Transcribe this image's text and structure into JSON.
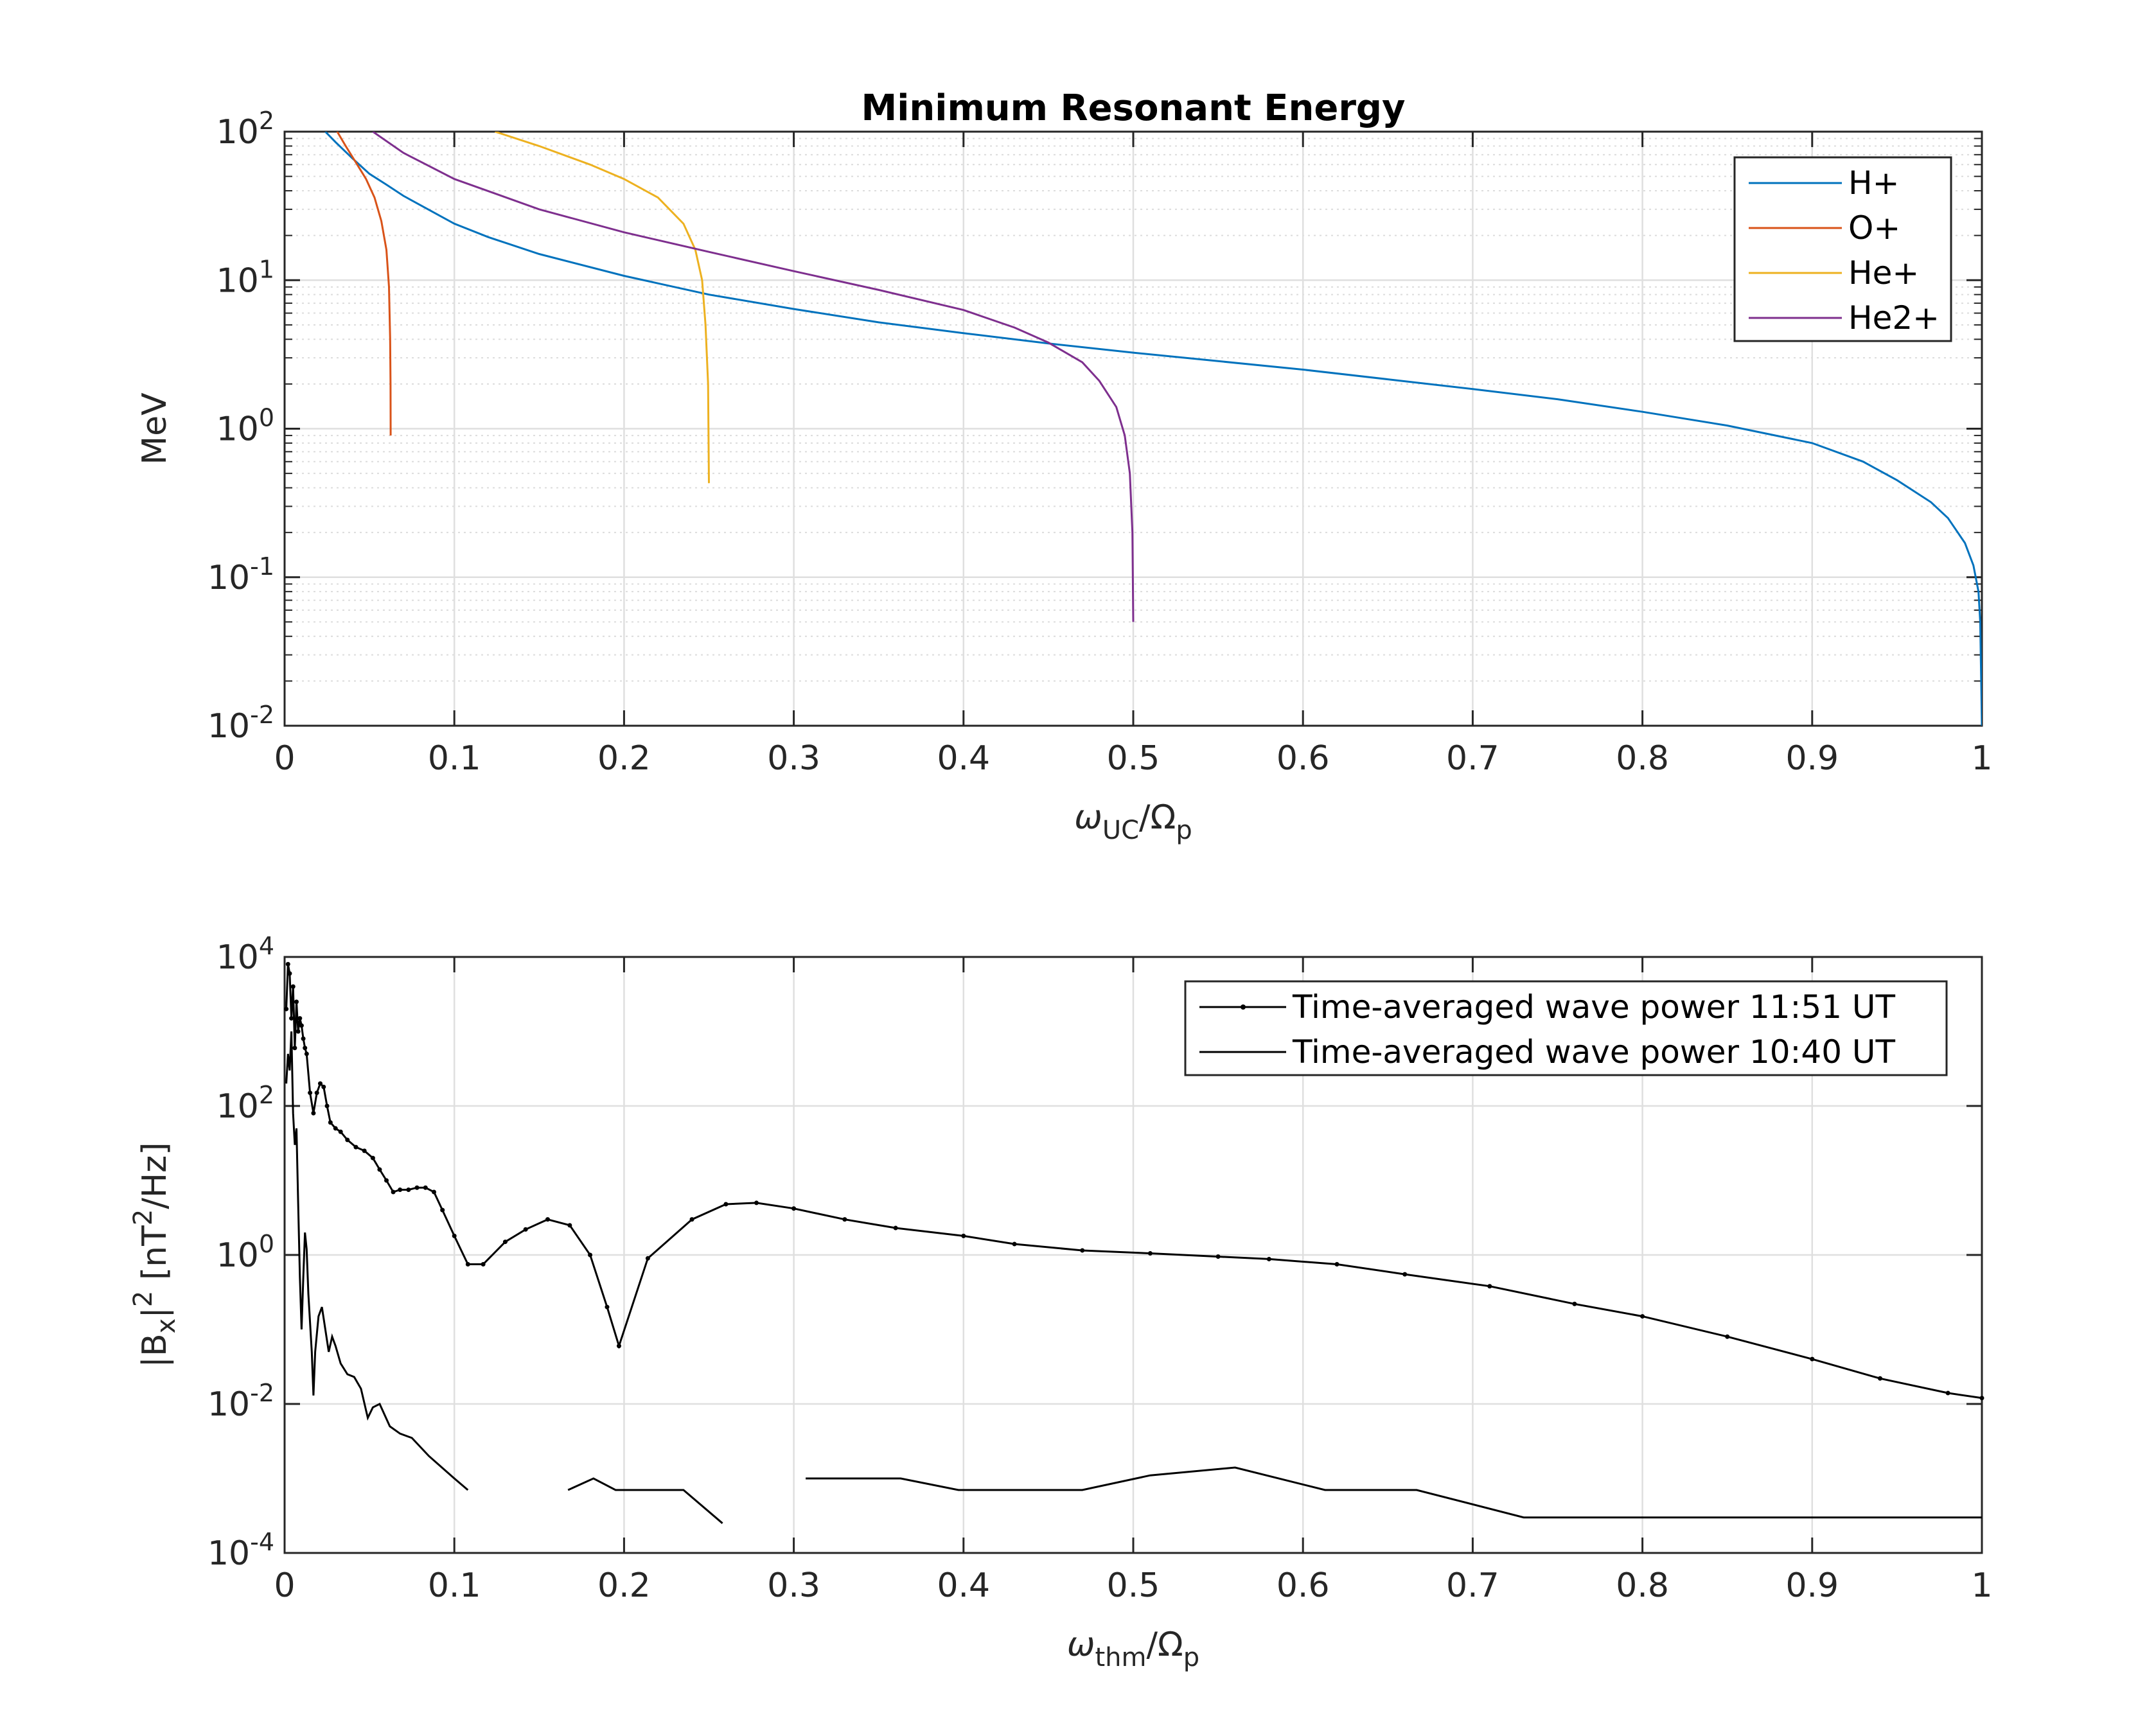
{
  "chart_data": [
    {
      "type": "line",
      "title": "Minimum Resonant Energy",
      "xlabel": {
        "base": "ω",
        "sub": "UC",
        "mid": "/Ω",
        "sub2": "p"
      },
      "ylabel": "MeV",
      "xlim": [
        0,
        1
      ],
      "ylim": [
        0.01,
        100
      ],
      "yscale": "log",
      "grid": true,
      "minor_grid_y": true,
      "legend_position": "top-right",
      "xticks": [
        "0",
        "0.1",
        "0.2",
        "0.3",
        "0.4",
        "0.5",
        "0.6",
        "0.7",
        "0.8",
        "0.9",
        "1"
      ],
      "yticks": [
        {
          "base": "10",
          "exp": "-2",
          "value": 0.01
        },
        {
          "base": "10",
          "exp": "-1",
          "value": 0.1
        },
        {
          "base": "10",
          "exp": "0",
          "value": 1
        },
        {
          "base": "10",
          "exp": "1",
          "value": 10
        },
        {
          "base": "10",
          "exp": "2",
          "value": 100
        }
      ],
      "series": [
        {
          "name": "H+",
          "color": "#0072BD",
          "points": [
            [
              0.024,
              100
            ],
            [
              0.03,
              85
            ],
            [
              0.04,
              66
            ],
            [
              0.05,
              52
            ],
            [
              0.06,
              44
            ],
            [
              0.07,
              37
            ],
            [
              0.08,
              32
            ],
            [
              0.1,
              24
            ],
            [
              0.12,
              19.5
            ],
            [
              0.15,
              15
            ],
            [
              0.2,
              10.7
            ],
            [
              0.25,
              8
            ],
            [
              0.3,
              6.4
            ],
            [
              0.35,
              5.2
            ],
            [
              0.4,
              4.4
            ],
            [
              0.45,
              3.75
            ],
            [
              0.5,
              3.25
            ],
            [
              0.55,
              2.85
            ],
            [
              0.6,
              2.5
            ],
            [
              0.65,
              2.15
            ],
            [
              0.7,
              1.85
            ],
            [
              0.75,
              1.58
            ],
            [
              0.8,
              1.3
            ],
            [
              0.85,
              1.05
            ],
            [
              0.9,
              0.8
            ],
            [
              0.93,
              0.6
            ],
            [
              0.95,
              0.45
            ],
            [
              0.97,
              0.32
            ],
            [
              0.98,
              0.25
            ],
            [
              0.99,
              0.17
            ],
            [
              0.995,
              0.12
            ],
            [
              0.998,
              0.08
            ],
            [
              0.999,
              0.05
            ],
            [
              1.0,
              0.01
            ]
          ]
        },
        {
          "name": "O+",
          "color": "#D95319",
          "points": [
            [
              0.031,
              100
            ],
            [
              0.036,
              80
            ],
            [
              0.042,
              62
            ],
            [
              0.048,
              48
            ],
            [
              0.053,
              36
            ],
            [
              0.057,
              25
            ],
            [
              0.06,
              16
            ],
            [
              0.0615,
              9
            ],
            [
              0.0622,
              4
            ],
            [
              0.0624,
              2
            ],
            [
              0.0625,
              0.9
            ]
          ]
        },
        {
          "name": "He+",
          "color": "#EDB120",
          "points": [
            [
              0.124,
              100
            ],
            [
              0.15,
              80
            ],
            [
              0.18,
              60
            ],
            [
              0.2,
              48
            ],
            [
              0.22,
              36
            ],
            [
              0.235,
              24
            ],
            [
              0.242,
              16
            ],
            [
              0.246,
              10
            ],
            [
              0.248,
              5
            ],
            [
              0.2495,
              2
            ],
            [
              0.25,
              0.43
            ]
          ]
        },
        {
          "name": "He2+",
          "color": "#7E2F8E",
          "points": [
            [
              0.052,
              100
            ],
            [
              0.07,
              72
            ],
            [
              0.1,
              48
            ],
            [
              0.15,
              30
            ],
            [
              0.2,
              21
            ],
            [
              0.25,
              15.5
            ],
            [
              0.3,
              11.5
            ],
            [
              0.35,
              8.6
            ],
            [
              0.4,
              6.3
            ],
            [
              0.43,
              4.8
            ],
            [
              0.45,
              3.8
            ],
            [
              0.47,
              2.8
            ],
            [
              0.48,
              2.1
            ],
            [
              0.49,
              1.4
            ],
            [
              0.495,
              0.9
            ],
            [
              0.498,
              0.5
            ],
            [
              0.4995,
              0.2
            ],
            [
              0.5,
              0.05
            ]
          ]
        }
      ]
    },
    {
      "type": "line",
      "title": "",
      "xlabel": {
        "base": "ω",
        "sub": "thm",
        "mid": "/Ω",
        "sub2": "p"
      },
      "ylabel": {
        "pre": "|B",
        "sub": "x",
        "mid": "|",
        "sup": "2",
        "mid2": " [nT",
        "sup2": "2",
        "post": "/Hz]"
      },
      "xlim": [
        0,
        1
      ],
      "ylim": [
        0.0001,
        10000
      ],
      "yscale": "log",
      "grid": true,
      "legend_position": "top-right",
      "xticks": [
        "0",
        "0.1",
        "0.2",
        "0.3",
        "0.4",
        "0.5",
        "0.6",
        "0.7",
        "0.8",
        "0.9",
        "1"
      ],
      "yticks": [
        {
          "base": "10",
          "exp": "-4",
          "value": 0.0001
        },
        {
          "base": "10",
          "exp": "-2",
          "value": 0.01
        },
        {
          "base": "10",
          "exp": "0",
          "value": 1
        },
        {
          "base": "10",
          "exp": "2",
          "value": 100
        },
        {
          "base": "10",
          "exp": "4",
          "value": 10000
        }
      ],
      "series": [
        {
          "name": "Time-averaged wave power 11:51 UT",
          "color": "#000000",
          "marker": "dot",
          "points": [
            [
              0.001,
              2000
            ],
            [
              0.002,
              8000
            ],
            [
              0.003,
              6000
            ],
            [
              0.004,
              1500
            ],
            [
              0.005,
              4000
            ],
            [
              0.006,
              600
            ],
            [
              0.007,
              2500
            ],
            [
              0.008,
              1000
            ],
            [
              0.009,
              1500
            ],
            [
              0.01,
              1200
            ],
            [
              0.011,
              800
            ],
            [
              0.012,
              600
            ],
            [
              0.013,
              500
            ],
            [
              0.015,
              150
            ],
            [
              0.017,
              80
            ],
            [
              0.019,
              150
            ],
            [
              0.021,
              200
            ],
            [
              0.023,
              180
            ],
            [
              0.025,
              100
            ],
            [
              0.027,
              60
            ],
            [
              0.03,
              50
            ],
            [
              0.033,
              45
            ],
            [
              0.037,
              35
            ],
            [
              0.042,
              28
            ],
            [
              0.047,
              25
            ],
            [
              0.052,
              20
            ],
            [
              0.056,
              14
            ],
            [
              0.06,
              10
            ],
            [
              0.064,
              7
            ],
            [
              0.068,
              7.5
            ],
            [
              0.073,
              7.5
            ],
            [
              0.078,
              8
            ],
            [
              0.083,
              8
            ],
            [
              0.088,
              7
            ],
            [
              0.093,
              4
            ],
            [
              0.1,
              1.8
            ],
            [
              0.108,
              0.75
            ],
            [
              0.117,
              0.75
            ],
            [
              0.13,
              1.5
            ],
            [
              0.142,
              2.2
            ],
            [
              0.155,
              3
            ],
            [
              0.168,
              2.5
            ],
            [
              0.18,
              1
            ],
            [
              0.19,
              0.2
            ],
            [
              0.197,
              0.06
            ],
            [
              0.214,
              0.9
            ],
            [
              0.24,
              3
            ],
            [
              0.26,
              4.8
            ],
            [
              0.278,
              5
            ],
            [
              0.3,
              4.2
            ],
            [
              0.33,
              3
            ],
            [
              0.36,
              2.3
            ],
            [
              0.4,
              1.8
            ],
            [
              0.43,
              1.4
            ],
            [
              0.47,
              1.15
            ],
            [
              0.51,
              1.05
            ],
            [
              0.55,
              0.95
            ],
            [
              0.58,
              0.88
            ],
            [
              0.62,
              0.75
            ],
            [
              0.66,
              0.55
            ],
            [
              0.71,
              0.38
            ],
            [
              0.76,
              0.22
            ],
            [
              0.8,
              0.15
            ],
            [
              0.85,
              0.08
            ],
            [
              0.9,
              0.04
            ],
            [
              0.94,
              0.022
            ],
            [
              0.98,
              0.014
            ],
            [
              1.0,
              0.012
            ]
          ]
        },
        {
          "name": "Time-averaged wave power 10:40 UT",
          "color": "#000000",
          "marker": "none",
          "segments": [
            [
              [
                0.001,
                200
              ],
              [
                0.002,
                500
              ],
              [
                0.003,
                300
              ],
              [
                0.004,
                1000
              ],
              [
                0.005,
                80
              ],
              [
                0.006,
                30
              ],
              [
                0.007,
                50
              ],
              [
                0.008,
                5
              ],
              [
                0.009,
                0.5
              ],
              [
                0.01,
                0.1
              ],
              [
                0.011,
                0.5
              ],
              [
                0.012,
                2
              ],
              [
                0.013,
                1.2
              ],
              [
                0.014,
                0.3
              ],
              [
                0.016,
                0.05
              ],
              [
                0.017,
                0.013
              ],
              [
                0.018,
                0.05
              ],
              [
                0.02,
                0.15
              ],
              [
                0.022,
                0.2
              ],
              [
                0.024,
                0.1
              ],
              [
                0.026,
                0.05
              ],
              [
                0.028,
                0.08
              ],
              [
                0.03,
                0.06
              ],
              [
                0.033,
                0.035
              ],
              [
                0.037,
                0.025
              ],
              [
                0.041,
                0.023
              ],
              [
                0.045,
                0.016
              ],
              [
                0.049,
                0.0065
              ],
              [
                0.052,
                0.009
              ],
              [
                0.056,
                0.01
              ],
              [
                0.062,
                0.005
              ],
              [
                0.068,
                0.004
              ],
              [
                0.075,
                0.0035
              ],
              [
                0.085,
                0.002
              ],
              [
                0.1,
                0.001
              ],
              [
                0.108,
                0.0007
              ]
            ],
            [
              [
                0.167,
                0.0007
              ],
              [
                0.182,
                0.001
              ],
              [
                0.195,
                0.0007
              ],
              [
                0.235,
                0.0007
              ],
              [
                0.258,
                0.00025
              ]
            ],
            [
              [
                0.307,
                0.001
              ],
              [
                0.363,
                0.001
              ],
              [
                0.397,
                0.0007
              ],
              [
                0.47,
                0.0007
              ],
              [
                0.51,
                0.0011
              ],
              [
                0.56,
                0.0014
              ],
              [
                0.613,
                0.0007
              ],
              [
                0.667,
                0.0007
              ],
              [
                0.73,
                0.0003
              ],
              [
                1.0,
                0.0003
              ]
            ]
          ]
        }
      ]
    }
  ]
}
